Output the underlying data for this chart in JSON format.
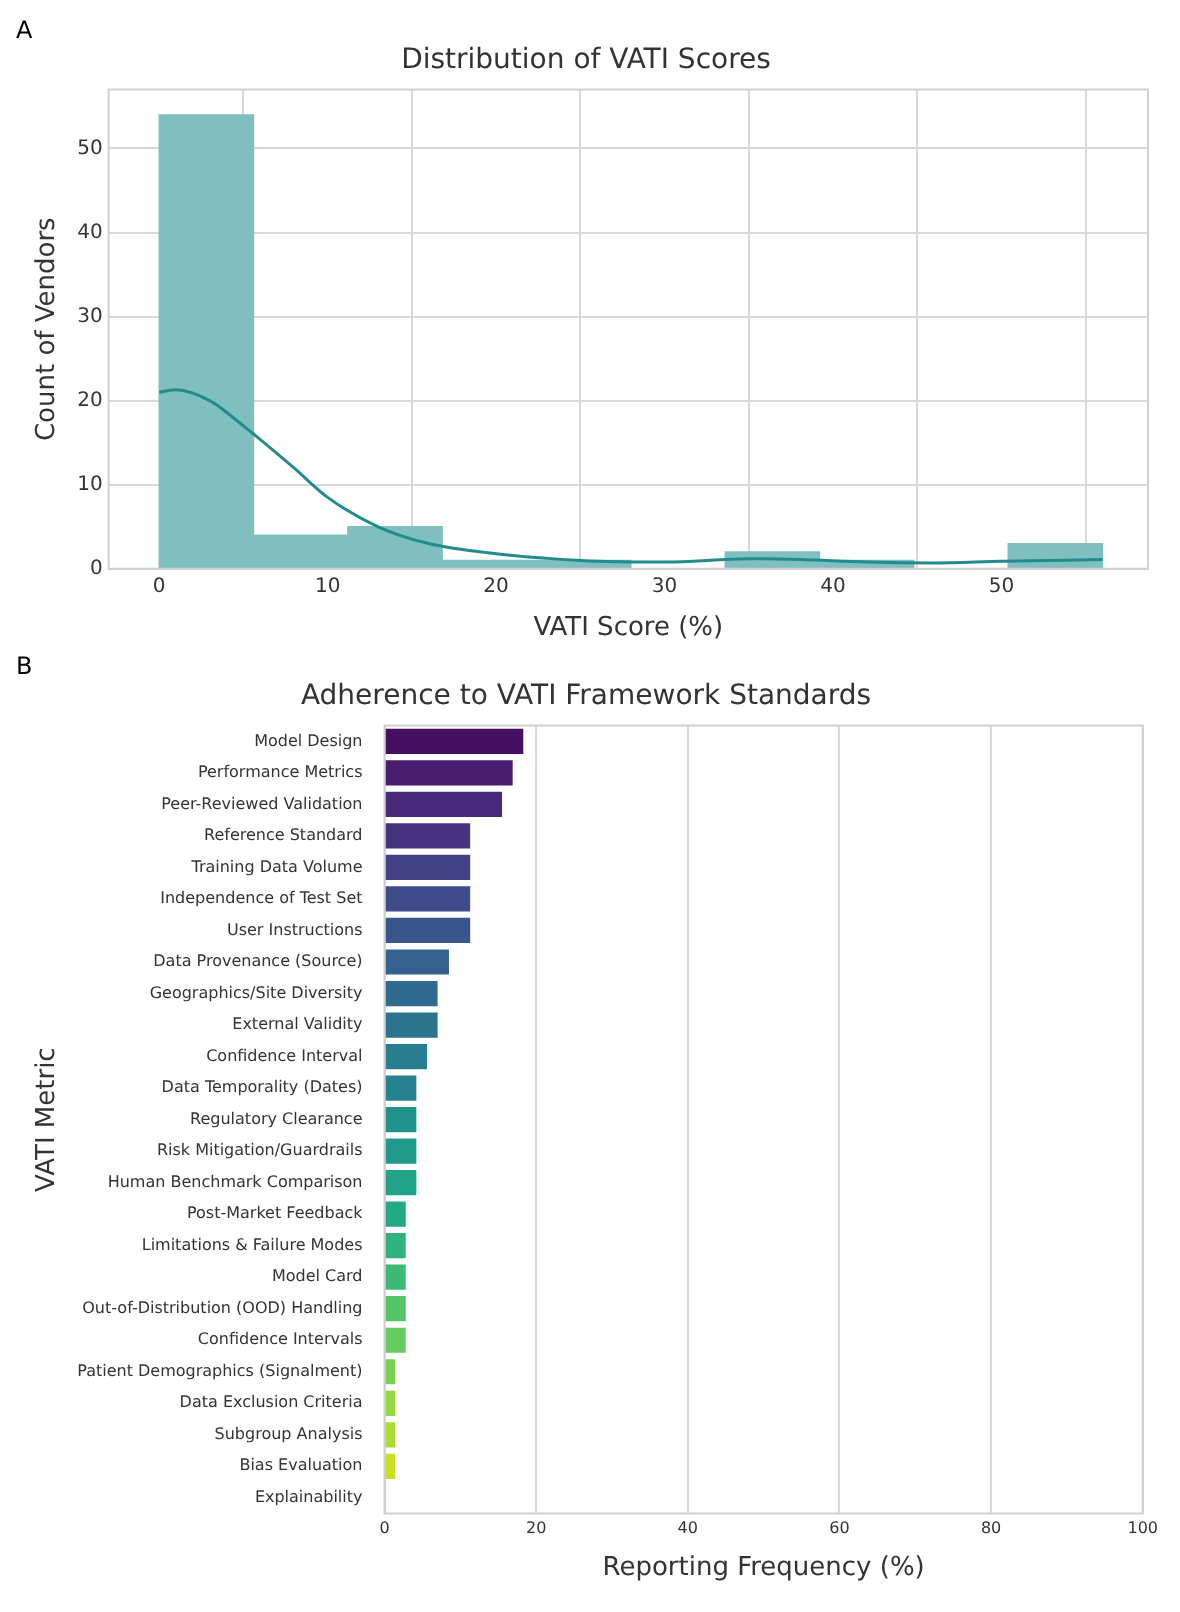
{
  "chart_data": [
    {
      "type": "histogram",
      "title": "Distribution of VATI Scores",
      "xlabel": "VATI Score (%)",
      "ylabel": "Count of Vendors",
      "annotations": [
        "A"
      ],
      "bins": [
        0,
        5.6,
        11.2,
        16.8,
        22.4,
        28,
        33.6,
        39.2,
        44.8,
        50.4,
        56
      ],
      "series": [
        {
          "type": "histogram",
          "color": "#7fbfbf",
          "values": [
            54,
            4,
            5,
            1,
            1,
            0,
            2,
            1,
            0,
            3
          ]
        },
        {
          "type": "line",
          "color": "#238b8b",
          "x": [
            0,
            1,
            3,
            5,
            8,
            10,
            13,
            16,
            20,
            25,
            30,
            35,
            38,
            42,
            46,
            50,
            56
          ],
          "values": [
            21,
            21.3,
            20,
            17,
            12,
            8.5,
            5,
            3,
            1.8,
            1,
            0.8,
            1.2,
            1.1,
            0.8,
            0.7,
            0.9,
            1.1
          ]
        }
      ],
      "xlim": [
        -3,
        58.7
      ],
      "ylim": [
        0,
        57
      ],
      "xticks": [
        0,
        10,
        20,
        30,
        40,
        50
      ],
      "yticks": [
        0,
        10,
        20,
        30,
        40,
        50
      ],
      "grid": true
    },
    {
      "type": "bar",
      "orientation": "horizontal",
      "title": "Adherence to VATI Framework Standards",
      "xlabel": "Reporting Frequency (%)",
      "ylabel": "VATI Metric",
      "annotations": [
        "B"
      ],
      "categories": [
        "Model Design",
        "Performance Metrics",
        "Peer-Reviewed Validation",
        "Reference Standard",
        "Training Data Volume",
        "Independence of Test Set",
        "User Instructions",
        "Data Provenance (Source)",
        "Geographics/Site Diversity",
        "External Validity",
        "Confidence Interval",
        "Data Temporality (Dates)",
        "Regulatory Clearance",
        "Risk Mitigation/Guardrails",
        "Human Benchmark Comparison",
        "Post-Market Feedback",
        "Limitations & Failure Modes",
        "Model Card",
        "Out-of-Distribution (OOD) Handling",
        "Confidence Intervals",
        "Patient Demographics (Signalment)",
        "Data Exclusion Criteria",
        "Subgroup Analysis",
        "Bias Evaluation",
        "Explainability"
      ],
      "values": [
        18.3,
        16.9,
        15.5,
        11.3,
        11.3,
        11.3,
        11.3,
        8.5,
        7.0,
        7.0,
        5.6,
        4.2,
        4.2,
        4.2,
        4.2,
        2.8,
        2.8,
        2.8,
        2.8,
        2.8,
        1.4,
        1.4,
        1.4,
        1.4,
        0
      ],
      "colors": [
        "#460f62",
        "#481d6f",
        "#472a7a",
        "#46337f",
        "#424186",
        "#3e4c8a",
        "#39568c",
        "#34618d",
        "#306a8e",
        "#2c738e",
        "#287d8e",
        "#26828e",
        "#21918c",
        "#1f998a",
        "#20a386",
        "#23a983",
        "#2eb37c",
        "#3bbb75",
        "#52c569",
        "#63cb5f",
        "#7ad151",
        "#95d840",
        "#aadc32",
        "#c8e020",
        "#e5e419"
      ],
      "xlim": [
        0,
        100
      ],
      "xticks": [
        0,
        20,
        40,
        60,
        80,
        100
      ],
      "grid": "x"
    }
  ]
}
